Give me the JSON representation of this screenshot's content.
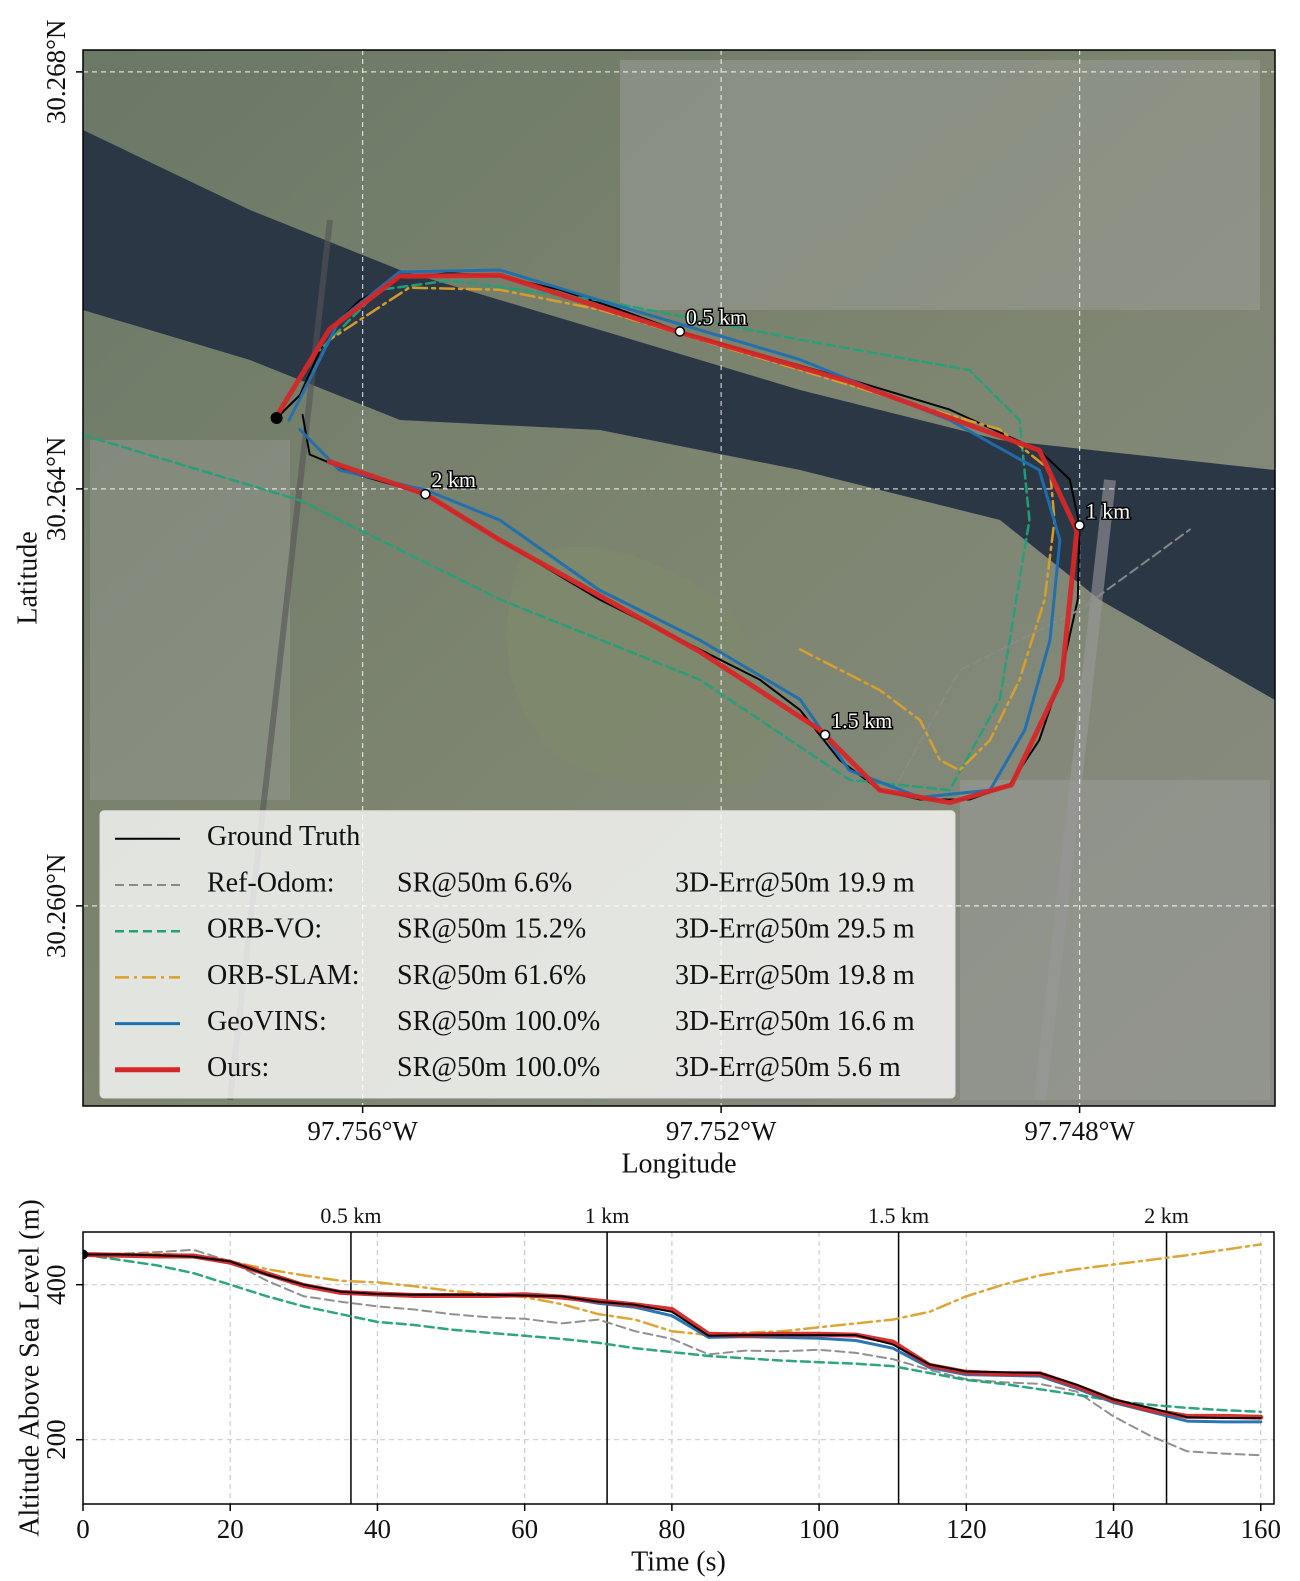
{
  "chart_data": [
    {
      "type": "line",
      "xlabel": "Longitude",
      "ylabel": "Latitude",
      "xlim": [
        -97.75912,
        -97.74582
      ],
      "ylim": [
        30.25808,
        30.26821
      ],
      "xticks": [
        {
          "value": -97.756,
          "label": "97.756°W"
        },
        {
          "value": -97.752,
          "label": "97.752°W"
        },
        {
          "value": -97.748,
          "label": "97.748°W"
        }
      ],
      "yticks": [
        {
          "value": 30.26,
          "label": "30.260°N"
        },
        {
          "value": 30.264,
          "label": "30.264°N"
        },
        {
          "value": 30.268,
          "label": "30.268°N"
        }
      ],
      "grid": true,
      "legend": "lower left",
      "series": [
        {
          "name": "Ground Truth",
          "color": "#000000",
          "dash": "solid",
          "linewidth": 2,
          "x": [
            -97.75696,
            -97.7567,
            -97.75637,
            -97.75603,
            -97.75559,
            -97.75503,
            -97.75447,
            -97.7538,
            -97.75313,
            -97.75246,
            -97.75157,
            -97.75057,
            -97.74945,
            -97.74845,
            -97.74811,
            -97.748,
            -97.74802,
            -97.74822,
            -97.74845,
            -97.74878,
            -97.74923,
            -97.74978,
            -97.75023,
            -97.75068,
            -97.75112,
            -97.75157,
            -97.75224,
            -97.75336,
            -97.75447,
            -97.7553,
            -97.75603,
            -97.75659,
            -97.75667
          ],
          "values": [
            30.26468,
            30.2649,
            30.26553,
            30.26581,
            30.26602,
            30.26607,
            30.26604,
            30.26591,
            30.26572,
            30.26551,
            30.26529,
            30.26505,
            30.26476,
            30.26437,
            30.26409,
            30.26365,
            30.26294,
            30.26217,
            30.26159,
            30.26116,
            30.26102,
            30.26102,
            30.26111,
            30.2614,
            30.26188,
            30.26217,
            30.26246,
            30.26294,
            30.26351,
            30.26395,
            30.26413,
            30.26433,
            30.26471
          ]
        },
        {
          "name": "Ref-Odom:",
          "sr": "SR@50m 6.6%",
          "err": "3D-Err@50m 19.9 m",
          "color": "#8a8a8a",
          "dash": "dashed",
          "linewidth": 2,
          "x": [
            -97.75001,
            -97.74934,
            -97.748,
            -97.74677
          ],
          "values": [
            30.26121,
            30.26226,
            30.26284,
            30.26361
          ]
        },
        {
          "name": "ORB-VO:",
          "sr": "SR@50m 15.2%",
          "err": "3D-Err@50m 29.5 m",
          "color": "#22a07a",
          "dash": "dashed",
          "linewidth": 2.5,
          "x": [
            -97.75913,
            -97.7567,
            -97.75447,
            -97.75224,
            -97.75057,
            -97.74945,
            -97.74889,
            -97.74856,
            -97.74867,
            -97.74923,
            -97.75112,
            -97.75336,
            -97.75503,
            -97.75581,
            -97.75648
          ],
          "values": [
            30.26452,
            30.26389,
            30.26294,
            30.26217,
            30.26121,
            30.26111,
            30.26198,
            30.2637,
            30.26466,
            30.26514,
            30.26543,
            30.26581,
            30.266,
            30.26591,
            30.26533
          ]
        },
        {
          "name": "ORB-SLAM:",
          "sr": "SR@50m 61.6%",
          "err": "3D-Err@50m 19.8 m",
          "color": "#dba02a",
          "dash": "dashdot",
          "linewidth": 2.5,
          "x": [
            -97.75682,
            -97.75637,
            -97.75548,
            -97.75447,
            -97.75336,
            -97.75224,
            -97.75112,
            -97.75001,
            -97.74889,
            -97.74833,
            -97.74828,
            -97.74839,
            -97.74867,
            -97.749,
            -97.74934,
            -97.74956,
            -97.74978,
            -97.75023,
            -97.75112
          ],
          "values": [
            30.26466,
            30.26543,
            30.26593,
            30.26591,
            30.26572,
            30.26543,
            30.26514,
            30.26485,
            30.26457,
            30.26418,
            30.2637,
            30.26294,
            30.26217,
            30.26159,
            30.2613,
            30.2614,
            30.26178,
            30.26207,
            30.26246
          ]
        },
        {
          "name": "GeoVINS:",
          "sr": "SR@50m 100.0%",
          "err": "3D-Err@50m 16.6 m",
          "color": "#1f6fb0",
          "dash": "solid",
          "linewidth": 3,
          "x": [
            -97.75682,
            -97.75659,
            -97.75626,
            -97.75559,
            -97.75447,
            -97.75336,
            -97.75112,
            -97.74945,
            -97.74845,
            -97.74822,
            -97.74833,
            -97.74861,
            -97.749,
            -97.74978,
            -97.75057,
            -97.75112,
            -97.75224,
            -97.75336,
            -97.75447,
            -97.7553,
            -97.75626,
            -97.7567
          ],
          "values": [
            30.26466,
            30.26505,
            30.26562,
            30.26608,
            30.2661,
            30.26581,
            30.26524,
            30.26466,
            30.26418,
            30.26351,
            30.26255,
            30.26169,
            30.26111,
            30.26104,
            30.2613,
            30.26198,
            30.26255,
            30.26303,
            30.2637,
            30.26399,
            30.26418,
            30.26457
          ]
        },
        {
          "name": "Ours:",
          "sr": "SR@50m 100.0%",
          "err": "3D-Err@50m 5.6 m",
          "color": "#d62728",
          "dash": "solid",
          "linewidth": 5,
          "x": [
            -97.75693,
            -97.75637,
            -97.75559,
            -97.75447,
            -97.75246,
            -97.75057,
            -97.74845,
            -97.74803,
            -97.7482,
            -97.74876,
            -97.74945,
            -97.75023,
            -97.7509,
            -97.75224,
            -97.75447,
            -97.7553,
            -97.75637
          ],
          "values": [
            30.26474,
            30.26553,
            30.26604,
            30.26605,
            30.2655,
            30.26503,
            30.26437,
            30.2636,
            30.26217,
            30.26116,
            30.26099,
            30.26111,
            30.26169,
            30.26244,
            30.26351,
            30.26395,
            30.26426
          ]
        }
      ],
      "markers": [
        {
          "label": "0.5 km",
          "x": -97.75246,
          "y": 30.26551
        },
        {
          "label": "1 km",
          "x": -97.748,
          "y": 30.26365
        },
        {
          "label": "1.5 km",
          "x": -97.75084,
          "y": 30.26164
        },
        {
          "label": "2 km",
          "x": -97.7553,
          "y": 30.26395
        }
      ]
    },
    {
      "type": "line",
      "xlabel": "Time (s)",
      "ylabel": "Altitude Above Sea Level (m)",
      "xlim": [
        0,
        161.8
      ],
      "ylim": [
        117,
        468
      ],
      "xticks": [
        0,
        20,
        40,
        60,
        80,
        100,
        120,
        140,
        160
      ],
      "yticks": [
        200,
        400
      ],
      "grid": true,
      "x": [
        0,
        5,
        10,
        15,
        20,
        25,
        30,
        35,
        40,
        45,
        50,
        55,
        60,
        65,
        70,
        75,
        80,
        85,
        90,
        95,
        100,
        105,
        110,
        115,
        120,
        125,
        130,
        135,
        140,
        145,
        150,
        155,
        160
      ],
      "series": [
        {
          "color": "#8a8a8a",
          "dash": "dashed",
          "linewidth": 2,
          "values": [
            439,
            440,
            442,
            445,
            430,
            405,
            385,
            378,
            372,
            368,
            362,
            358,
            356,
            350,
            355,
            340,
            330,
            310,
            315,
            314,
            316,
            312,
            304,
            290,
            278,
            274,
            272,
            262,
            230,
            205,
            185,
            182,
            180
          ]
        },
        {
          "color": "#22a07a",
          "dash": "dashed",
          "linewidth": 2.5,
          "values": [
            439,
            432,
            425,
            415,
            400,
            385,
            372,
            362,
            352,
            348,
            342,
            338,
            334,
            330,
            325,
            318,
            313,
            308,
            305,
            302,
            300,
            298,
            295,
            286,
            277,
            272,
            265,
            258,
            250,
            245,
            241,
            238,
            236
          ]
        },
        {
          "color": "#dba02a",
          "dash": "dashdot",
          "linewidth": 2.5,
          "values": [
            439,
            438,
            440,
            438,
            430,
            420,
            412,
            405,
            403,
            398,
            392,
            388,
            384,
            375,
            362,
            355,
            340,
            335,
            338,
            340,
            345,
            350,
            355,
            365,
            385,
            400,
            412,
            420,
            426,
            432,
            438,
            445,
            452
          ]
        },
        {
          "color": "#1f6fb0",
          "dash": "solid",
          "linewidth": 3,
          "values": [
            439,
            439,
            438,
            436,
            430,
            413,
            400,
            391,
            388,
            387,
            387,
            387,
            386,
            384,
            376,
            371,
            360,
            332,
            333,
            332,
            331,
            328,
            318,
            293,
            284,
            283,
            282,
            266,
            248,
            236,
            224,
            223,
            223
          ]
        },
        {
          "color": "#d62728",
          "dash": "solid",
          "linewidth": 5,
          "values": [
            439,
            438,
            437,
            437,
            429,
            414,
            399,
            390,
            388,
            386,
            386,
            386,
            387,
            384,
            379,
            374,
            368,
            336,
            335,
            336,
            336,
            335,
            326,
            296,
            287,
            285,
            285,
            269,
            251,
            238,
            230,
            230,
            229
          ]
        },
        {
          "color": "#000000",
          "dash": "solid",
          "linewidth": 2,
          "values": [
            439,
            439,
            438,
            436,
            430,
            413,
            400,
            391,
            388,
            387,
            387,
            387,
            386,
            385,
            378,
            374,
            365,
            334,
            335,
            335,
            335,
            335,
            323,
            297,
            288,
            287,
            286,
            271,
            252,
            241,
            229,
            228,
            228
          ]
        }
      ],
      "markers": [
        {
          "label": "0.5 km",
          "x": 36.4
        },
        {
          "label": "1 km",
          "x": 71.2
        },
        {
          "label": "1.5 km",
          "x": 110.8
        },
        {
          "label": "2 km",
          "x": 147.2
        }
      ]
    }
  ]
}
